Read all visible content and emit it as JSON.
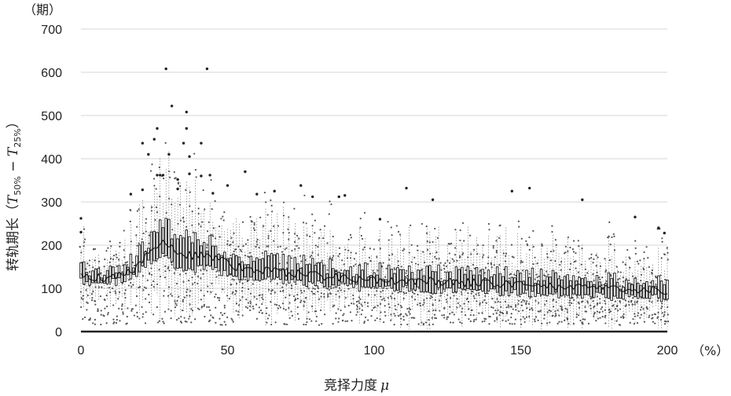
{
  "chart_data": {
    "type": "box",
    "title": "",
    "y_unit_label": "（期）",
    "x_unit_label": "（%）",
    "xlabel_main": "竞择力度",
    "xlabel_symbol": "μ",
    "ylabel_prefix": "转轨期长（",
    "ylabel_t1": "T",
    "ylabel_sub1": "50%",
    "ylabel_mid": " − ",
    "ylabel_t2": "T",
    "ylabel_sub2": "25%",
    "ylabel_suffix": "）",
    "xlim": [
      0,
      200
    ],
    "ylim": [
      0,
      700
    ],
    "x_ticks": [
      0,
      50,
      100,
      150,
      200
    ],
    "y_ticks": [
      0,
      100,
      200,
      300,
      400,
      500,
      600,
      700
    ],
    "grid": "horizontal",
    "legend": "none",
    "box_step": 1,
    "trend_keypoints": [
      {
        "x": 0,
        "median": 130,
        "q1": 118,
        "q3": 145
      },
      {
        "x": 5,
        "median": 125,
        "q1": 114,
        "q3": 138
      },
      {
        "x": 12,
        "median": 125,
        "q1": 115,
        "q3": 138
      },
      {
        "x": 18,
        "median": 145,
        "q1": 130,
        "q3": 165
      },
      {
        "x": 24,
        "median": 185,
        "q1": 165,
        "q3": 215
      },
      {
        "x": 28,
        "median": 210,
        "q1": 180,
        "q3": 255
      },
      {
        "x": 32,
        "median": 185,
        "q1": 150,
        "q3": 225
      },
      {
        "x": 38,
        "median": 175,
        "q1": 145,
        "q3": 210
      },
      {
        "x": 44,
        "median": 175,
        "q1": 145,
        "q3": 205
      },
      {
        "x": 52,
        "median": 150,
        "q1": 130,
        "q3": 175
      },
      {
        "x": 65,
        "median": 140,
        "q1": 120,
        "q3": 165
      },
      {
        "x": 80,
        "median": 130,
        "q1": 110,
        "q3": 155
      },
      {
        "x": 100,
        "median": 120,
        "q1": 100,
        "q3": 140
      },
      {
        "x": 125,
        "median": 115,
        "q1": 95,
        "q3": 135
      },
      {
        "x": 150,
        "median": 110,
        "q1": 90,
        "q3": 130
      },
      {
        "x": 175,
        "median": 100,
        "q1": 82,
        "q3": 118
      },
      {
        "x": 200,
        "median": 95,
        "q1": 78,
        "q3": 110
      }
    ],
    "outliers_high": [
      [
        0,
        262
      ],
      [
        0,
        230
      ],
      [
        17,
        318
      ],
      [
        21,
        436
      ],
      [
        21,
        328
      ],
      [
        23,
        410
      ],
      [
        25,
        445
      ],
      [
        26,
        470
      ],
      [
        26,
        362
      ],
      [
        27,
        362
      ],
      [
        28,
        362
      ],
      [
        29,
        608
      ],
      [
        30,
        410
      ],
      [
        31,
        522
      ],
      [
        33,
        352
      ],
      [
        33,
        330
      ],
      [
        35,
        436
      ],
      [
        36,
        508
      ],
      [
        36,
        470
      ],
      [
        37,
        405
      ],
      [
        37,
        365
      ],
      [
        41,
        436
      ],
      [
        41,
        360
      ],
      [
        43,
        608
      ],
      [
        44,
        362
      ],
      [
        45,
        320
      ],
      [
        50,
        338
      ],
      [
        56,
        370
      ],
      [
        60,
        318
      ],
      [
        66,
        325
      ],
      [
        75,
        338
      ],
      [
        79,
        312
      ],
      [
        88,
        312
      ],
      [
        90,
        315
      ],
      [
        102,
        260
      ],
      [
        111,
        332
      ],
      [
        120,
        305
      ],
      [
        147,
        325
      ],
      [
        153,
        332
      ],
      [
        171,
        305
      ],
      [
        189,
        265
      ],
      [
        197,
        240
      ],
      [
        199,
        228
      ]
    ]
  }
}
